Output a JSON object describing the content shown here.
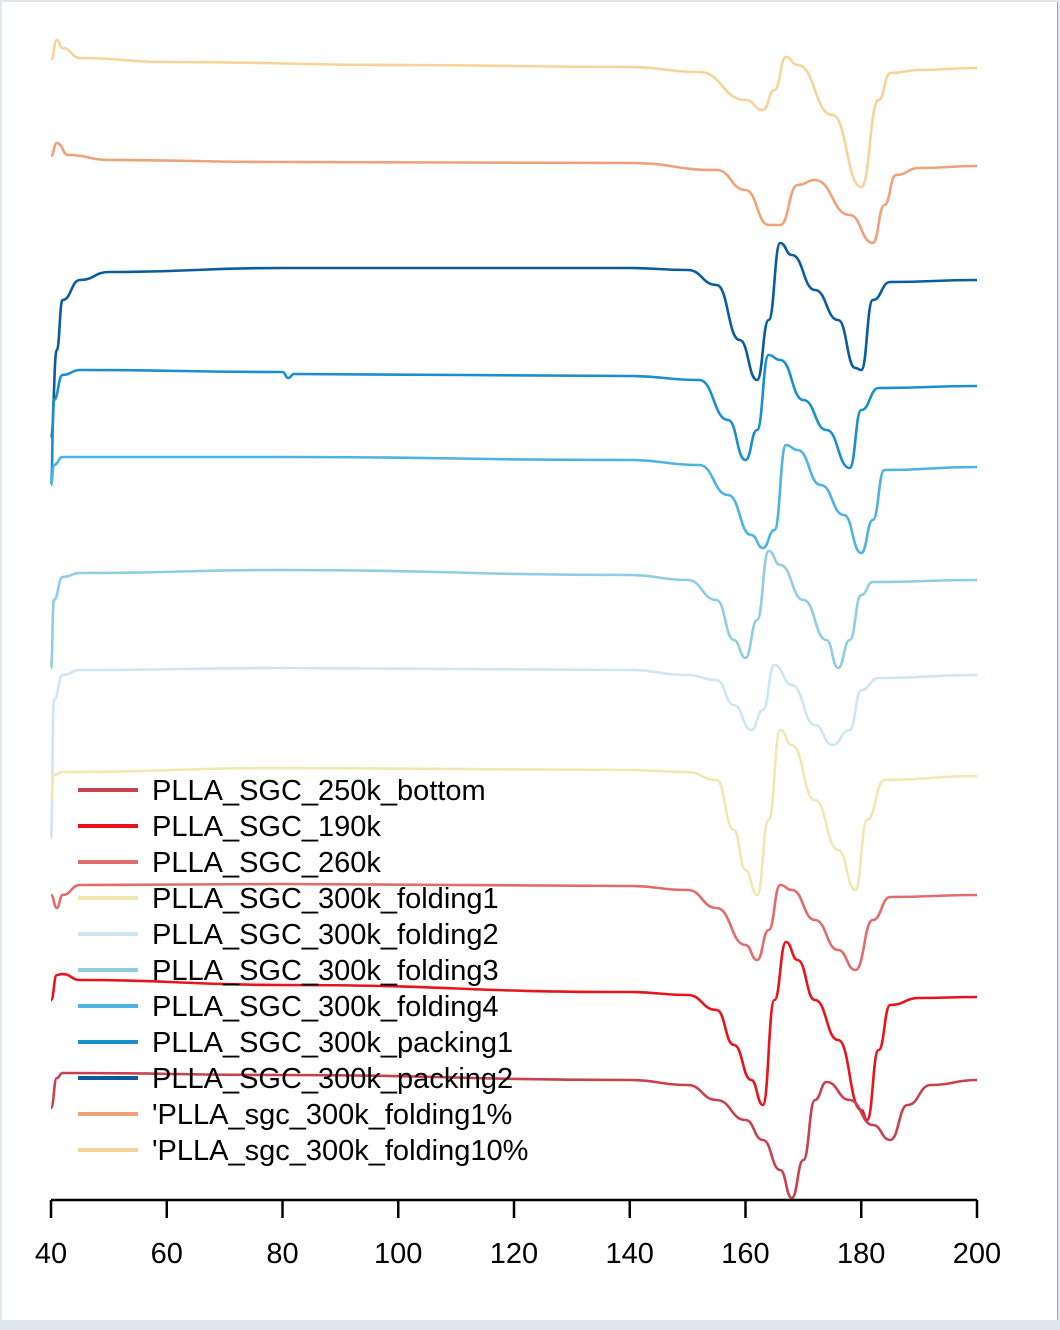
{
  "chart_data": {
    "type": "line",
    "title": "",
    "xlabel": "",
    "ylabel": "",
    "xlim": [
      40,
      200
    ],
    "x_ticks": [
      "40",
      "60",
      "80",
      "100",
      "120",
      "140",
      "160",
      "180",
      "200"
    ],
    "legend": {
      "placement": "bottom-left",
      "entries": [
        {
          "name": "PLLA_SGC_250k_bottom",
          "color": "#c8414f"
        },
        {
          "name": "PLLA_SGC_190k",
          "color": "#e8141b"
        },
        {
          "name": "PLLA_SGC_260k",
          "color": "#e06c6c"
        },
        {
          "name": "PLLA_SGC_300k_folding1",
          "color": "#efe8b0"
        },
        {
          "name": "PLLA_SGC_300k_folding2",
          "color": "#cfe6f0"
        },
        {
          "name": "PLLA_SGC_300k_folding3",
          "color": "#8fcde6"
        },
        {
          "name": "PLLA_SGC_300k_folding4",
          "color": "#4db3e0"
        },
        {
          "name": "PLLA_SGC_300k_packing1",
          "color": "#1a8fcf"
        },
        {
          "name": "PLLA_SGC_300k_packing2",
          "color": "#0b5c9e"
        },
        {
          "name": "'PLLA_sgc_300k_folding1%",
          "color": "#eda27a"
        },
        {
          "name": "'PLLA_sgc_300k_folding10%",
          "color": "#f5d49a"
        }
      ]
    },
    "series": [
      {
        "color": "#f5d49a",
        "points": [
          [
            40,
            60
          ],
          [
            41,
            40
          ],
          [
            42,
            48
          ],
          [
            45,
            58
          ],
          [
            60,
            62
          ],
          [
            100,
            65
          ],
          [
            140,
            67
          ],
          [
            152,
            72
          ],
          [
            160,
            100
          ],
          [
            163,
            110
          ],
          [
            165,
            90
          ],
          [
            167,
            57
          ],
          [
            169,
            65
          ],
          [
            175,
            115
          ],
          [
            180,
            187
          ],
          [
            183,
            100
          ],
          [
            185,
            73
          ],
          [
            190,
            70
          ],
          [
            200,
            68
          ]
        ]
      },
      {
        "color": "#eda27a",
        "points": [
          [
            40,
            156
          ],
          [
            41,
            143
          ],
          [
            43,
            155
          ],
          [
            50,
            160
          ],
          [
            80,
            162
          ],
          [
            140,
            163
          ],
          [
            155,
            170
          ],
          [
            160,
            190
          ],
          [
            164,
            225
          ],
          [
            166,
            225
          ],
          [
            169,
            185
          ],
          [
            172,
            180
          ],
          [
            178,
            215
          ],
          [
            182,
            243
          ],
          [
            184,
            205
          ],
          [
            186,
            175
          ],
          [
            190,
            168
          ],
          [
            200,
            166
          ]
        ]
      },
      {
        "color": "#0b5c9e",
        "points": [
          [
            40,
            438
          ],
          [
            41,
            350
          ],
          [
            42,
            300
          ],
          [
            45,
            280
          ],
          [
            50,
            272
          ],
          [
            80,
            268
          ],
          [
            140,
            268
          ],
          [
            150,
            270
          ],
          [
            155,
            285
          ],
          [
            159,
            340
          ],
          [
            162,
            380
          ],
          [
            164,
            320
          ],
          [
            166,
            243
          ],
          [
            168,
            255
          ],
          [
            172,
            290
          ],
          [
            176,
            320
          ],
          [
            179,
            368
          ],
          [
            180,
            370
          ],
          [
            182,
            300
          ],
          [
            185,
            282
          ],
          [
            200,
            280
          ]
        ]
      },
      {
        "color": "#1a8fcf",
        "points": [
          [
            40,
            485
          ],
          [
            40.5,
            400
          ],
          [
            42,
            375
          ],
          [
            45,
            370
          ],
          [
            80,
            372
          ],
          [
            81,
            378
          ],
          [
            82,
            374
          ],
          [
            140,
            376
          ],
          [
            152,
            380
          ],
          [
            157,
            420
          ],
          [
            160,
            460
          ],
          [
            162,
            430
          ],
          [
            164,
            355
          ],
          [
            166,
            360
          ],
          [
            170,
            400
          ],
          [
            174,
            430
          ],
          [
            178,
            468
          ],
          [
            180,
            410
          ],
          [
            183,
            388
          ],
          [
            200,
            386
          ]
        ]
      },
      {
        "color": "#4db3e0",
        "points": [
          [
            40,
            485
          ],
          [
            40.5,
            465
          ],
          [
            42,
            457
          ],
          [
            80,
            457
          ],
          [
            140,
            460
          ],
          [
            152,
            465
          ],
          [
            157,
            495
          ],
          [
            161,
            535
          ],
          [
            163,
            548
          ],
          [
            165,
            530
          ],
          [
            167,
            445
          ],
          [
            169,
            450
          ],
          [
            173,
            485
          ],
          [
            177,
            515
          ],
          [
            180,
            553
          ],
          [
            182,
            520
          ],
          [
            184,
            470
          ],
          [
            200,
            467
          ]
        ]
      },
      {
        "color": "#8fcde6",
        "points": [
          [
            40,
            668
          ],
          [
            40.5,
            600
          ],
          [
            42,
            577
          ],
          [
            45,
            573
          ],
          [
            80,
            570
          ],
          [
            140,
            575
          ],
          [
            150,
            580
          ],
          [
            155,
            600
          ],
          [
            158,
            640
          ],
          [
            160,
            658
          ],
          [
            162,
            620
          ],
          [
            164,
            551
          ],
          [
            166,
            565
          ],
          [
            170,
            600
          ],
          [
            174,
            640
          ],
          [
            176,
            668
          ],
          [
            178,
            640
          ],
          [
            180,
            595
          ],
          [
            182,
            582
          ],
          [
            200,
            580
          ]
        ]
      },
      {
        "color": "#cfe6f0",
        "points": [
          [
            40,
            838
          ],
          [
            40.5,
            700
          ],
          [
            42,
            675
          ],
          [
            45,
            670
          ],
          [
            80,
            668
          ],
          [
            140,
            670
          ],
          [
            150,
            675
          ],
          [
            155,
            680
          ],
          [
            158,
            705
          ],
          [
            161,
            730
          ],
          [
            163,
            710
          ],
          [
            165,
            665
          ],
          [
            168,
            685
          ],
          [
            172,
            725
          ],
          [
            175,
            745
          ],
          [
            178,
            730
          ],
          [
            180,
            690
          ],
          [
            183,
            678
          ],
          [
            200,
            675
          ]
        ]
      },
      {
        "color": "#efe8b0",
        "points": [
          [
            40,
            800
          ],
          [
            40.5,
            775
          ],
          [
            42,
            772
          ],
          [
            80,
            768
          ],
          [
            140,
            770
          ],
          [
            150,
            772
          ],
          [
            155,
            780
          ],
          [
            158,
            830
          ],
          [
            160,
            870
          ],
          [
            162,
            895
          ],
          [
            164,
            820
          ],
          [
            166,
            730
          ],
          [
            168,
            745
          ],
          [
            172,
            800
          ],
          [
            176,
            850
          ],
          [
            179,
            890
          ],
          [
            181,
            820
          ],
          [
            184,
            780
          ],
          [
            200,
            776
          ]
        ]
      },
      {
        "color": "#e06c6c",
        "points": [
          [
            40,
            895
          ],
          [
            41,
            908
          ],
          [
            42,
            895
          ],
          [
            45,
            885
          ],
          [
            80,
            884
          ],
          [
            140,
            886
          ],
          [
            150,
            890
          ],
          [
            155,
            908
          ],
          [
            160,
            945
          ],
          [
            162,
            960
          ],
          [
            164,
            930
          ],
          [
            166,
            885
          ],
          [
            168,
            890
          ],
          [
            172,
            920
          ],
          [
            176,
            950
          ],
          [
            179,
            970
          ],
          [
            182,
            920
          ],
          [
            185,
            897
          ],
          [
            200,
            895
          ]
        ]
      },
      {
        "color": "#e8141b",
        "points": [
          [
            40,
            1000
          ],
          [
            41,
            975
          ],
          [
            42,
            974
          ],
          [
            45,
            980
          ],
          [
            80,
            985
          ],
          [
            140,
            992
          ],
          [
            150,
            995
          ],
          [
            155,
            1010
          ],
          [
            158,
            1045
          ],
          [
            161,
            1080
          ],
          [
            163,
            1105
          ],
          [
            165,
            1000
          ],
          [
            167,
            942
          ],
          [
            169,
            960
          ],
          [
            172,
            1000
          ],
          [
            176,
            1040
          ],
          [
            180,
            1110
          ],
          [
            181,
            1120
          ],
          [
            183,
            1050
          ],
          [
            185,
            1005
          ],
          [
            190,
            998
          ],
          [
            200,
            997
          ]
        ]
      },
      {
        "color": "#c8414f",
        "points": [
          [
            40,
            1108
          ],
          [
            41,
            1078
          ],
          [
            42,
            1073
          ],
          [
            80,
            1075
          ],
          [
            140,
            1080
          ],
          [
            150,
            1085
          ],
          [
            155,
            1100
          ],
          [
            160,
            1120
          ],
          [
            163,
            1140
          ],
          [
            166,
            1170
          ],
          [
            168,
            1198
          ],
          [
            170,
            1160
          ],
          [
            172,
            1100
          ],
          [
            174,
            1082
          ],
          [
            178,
            1100
          ],
          [
            182,
            1125
          ],
          [
            185,
            1140
          ],
          [
            188,
            1105
          ],
          [
            192,
            1085
          ],
          [
            200,
            1080
          ]
        ]
      }
    ]
  }
}
